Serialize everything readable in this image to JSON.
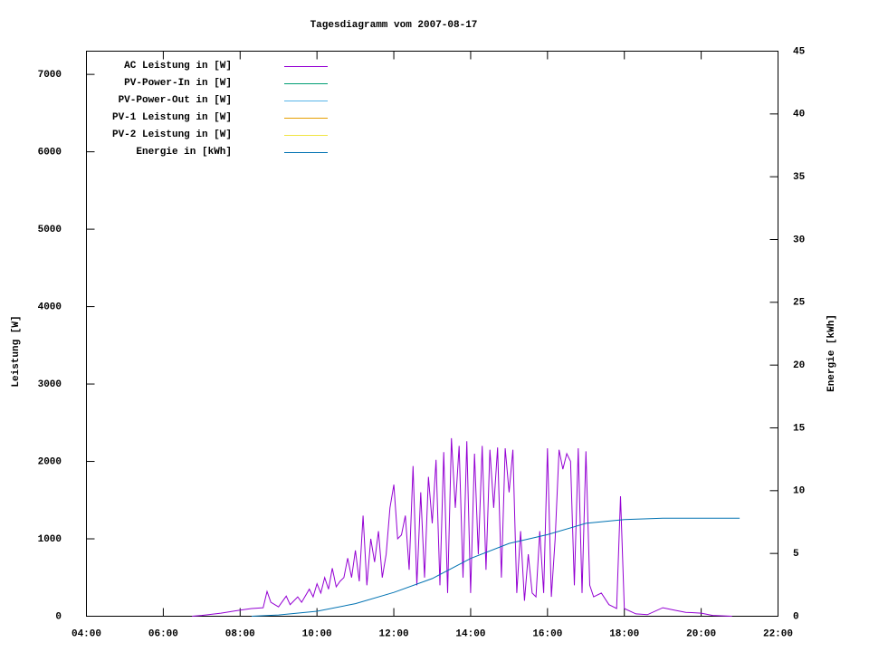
{
  "chart_data": {
    "type": "line",
    "title": "Tagesdiagramm vom 2007-08-17",
    "y_label": "Leistung [W]",
    "y2_label": "Energie [kWh]",
    "xlim": [
      4,
      22
    ],
    "xticks": [
      {
        "value": 4,
        "label": "04:00"
      },
      {
        "value": 6,
        "label": "06:00"
      },
      {
        "value": 8,
        "label": "08:00"
      },
      {
        "value": 10,
        "label": "10:00"
      },
      {
        "value": 12,
        "label": "12:00"
      },
      {
        "value": 14,
        "label": "14:00"
      },
      {
        "value": 16,
        "label": "16:00"
      },
      {
        "value": 18,
        "label": "18:00"
      },
      {
        "value": 20,
        "label": "20:00"
      },
      {
        "value": 22,
        "label": "22:00"
      }
    ],
    "ylim": [
      0,
      7300
    ],
    "yticks": [
      0,
      1000,
      2000,
      3000,
      4000,
      5000,
      6000,
      7000
    ],
    "y2lim": [
      0,
      45
    ],
    "y2ticks": [
      0,
      5,
      10,
      15,
      20,
      25,
      30,
      35,
      40,
      45
    ],
    "legend": "top-left",
    "series": [
      {
        "name": "AC Leistung in [W]",
        "color": "#9400d3",
        "x": [
          6.75,
          7.0,
          7.5,
          8.0,
          8.3,
          8.6,
          8.7,
          8.8,
          9.0,
          9.2,
          9.3,
          9.5,
          9.6,
          9.8,
          9.9,
          10.0,
          10.1,
          10.2,
          10.3,
          10.4,
          10.5,
          10.6,
          10.7,
          10.8,
          10.9,
          11.0,
          11.1,
          11.2,
          11.3,
          11.4,
          11.5,
          11.6,
          11.7,
          11.8,
          11.9,
          12.0,
          12.1,
          12.2,
          12.3,
          12.4,
          12.5,
          12.6,
          12.7,
          12.8,
          12.9,
          13.0,
          13.1,
          13.2,
          13.3,
          13.4,
          13.5,
          13.6,
          13.7,
          13.8,
          13.9,
          14.0,
          14.1,
          14.2,
          14.3,
          14.4,
          14.5,
          14.6,
          14.7,
          14.8,
          14.9,
          15.0,
          15.1,
          15.2,
          15.3,
          15.4,
          15.5,
          15.6,
          15.7,
          15.8,
          15.9,
          16.0,
          16.1,
          16.2,
          16.3,
          16.4,
          16.5,
          16.6,
          16.7,
          16.8,
          16.9,
          17.0,
          17.1,
          17.2,
          17.4,
          17.6,
          17.8,
          17.9,
          18.0,
          18.3,
          18.6,
          19.0,
          19.3,
          19.6,
          20.0,
          20.3,
          20.8
        ],
        "values": [
          0,
          10,
          40,
          80,
          100,
          110,
          320,
          180,
          120,
          260,
          150,
          250,
          180,
          350,
          250,
          420,
          300,
          500,
          350,
          620,
          380,
          450,
          500,
          750,
          500,
          850,
          450,
          1300,
          400,
          1000,
          700,
          1100,
          500,
          800,
          1400,
          1700,
          1000,
          1050,
          1300,
          600,
          1940,
          400,
          1600,
          500,
          1800,
          1200,
          2020,
          400,
          2120,
          300,
          2300,
          1400,
          2200,
          500,
          2260,
          300,
          2100,
          800,
          2200,
          600,
          2150,
          1400,
          2180,
          500,
          2170,
          1600,
          2150,
          300,
          1100,
          200,
          800,
          300,
          250,
          1100,
          300,
          2170,
          250,
          1000,
          2150,
          1900,
          2100,
          2000,
          400,
          2170,
          300,
          2130,
          400,
          250,
          300,
          150,
          100,
          1550,
          100,
          30,
          20,
          110,
          80,
          50,
          40,
          10,
          0
        ]
      },
      {
        "name": "PV-Power-In in [W]",
        "color": "#009e73",
        "x": [],
        "values": []
      },
      {
        "name": "PV-Power-Out in [W]",
        "color": "#56b4e9",
        "x": [],
        "values": []
      },
      {
        "name": "PV-1 Leistung in [W]",
        "color": "#e69f00",
        "x": [],
        "values": []
      },
      {
        "name": "PV-2 Leistung in [W]",
        "color": "#f0e442",
        "x": [],
        "values": []
      },
      {
        "name": "Energie in [kWh]",
        "color": "#0072b2",
        "axis": "y2",
        "x": [
          8.3,
          9,
          10,
          11,
          12,
          13,
          14,
          15,
          16,
          17,
          18,
          19,
          21
        ],
        "values": [
          0,
          0.1,
          0.4,
          1.0,
          1.9,
          3.0,
          4.6,
          5.8,
          6.5,
          7.4,
          7.7,
          7.8,
          7.8
        ]
      }
    ]
  }
}
